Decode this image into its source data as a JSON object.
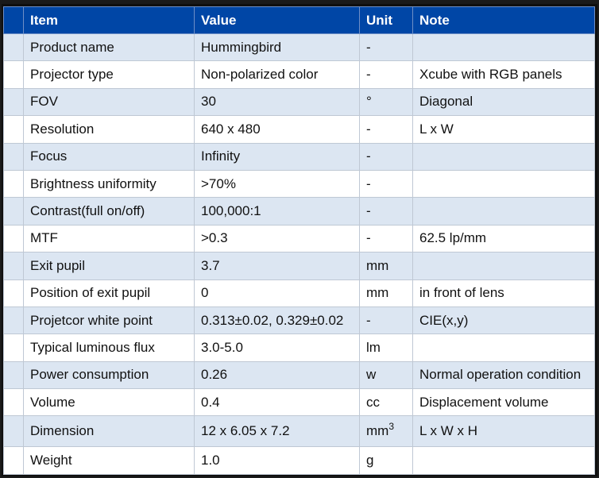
{
  "columns": [
    "Item",
    "Value",
    "Unit",
    "Note"
  ],
  "rows": [
    {
      "item": "Product name",
      "value": "Hummingbird",
      "unit": "-",
      "note": ""
    },
    {
      "item": "Projector type",
      "value": "Non-polarized color",
      "unit": "-",
      "note": "Xcube with RGB panels"
    },
    {
      "item": "FOV",
      "value": "30",
      "unit": "°",
      "note": "Diagonal"
    },
    {
      "item": "Resolution",
      "value": "640 x 480",
      "unit": "-",
      "note": "L x W"
    },
    {
      "item": "Focus",
      "value": "Infinity",
      "unit": "-",
      "note": ""
    },
    {
      "item": "Brightness uniformity",
      "value": ">70%",
      "unit": "-",
      "note": ""
    },
    {
      "item": "Contrast(full on/off)",
      "value": "100,000:1",
      "unit": "-",
      "note": ""
    },
    {
      "item": "MTF",
      "value": ">0.3",
      "unit": "-",
      "note": "62.5 lp/mm"
    },
    {
      "item": "Exit pupil",
      "value": "3.7",
      "unit": "mm",
      "note": ""
    },
    {
      "item": "Position of exit pupil",
      "value": "0",
      "unit": "mm",
      "note": "in front of lens"
    },
    {
      "item": "Projetcor white point",
      "value": "0.313±0.02, 0.329±0.02",
      "unit": "-",
      "note": "CIE(x,y)"
    },
    {
      "item": "Typical luminous flux",
      "value": "3.0-5.0",
      "unit": "lm",
      "note": ""
    },
    {
      "item": "Power consumption",
      "value": "0.26",
      "unit": "w",
      "note": "Normal operation condition"
    },
    {
      "item": "Volume",
      "value": "0.4",
      "unit": "cc",
      "note": "Displacement volume"
    },
    {
      "item": "Dimension",
      "value": "12 x 6.05 x 7.2",
      "unit": "mm",
      "unit_sup": "3",
      "note": "L x W x H"
    },
    {
      "item": "Weight",
      "value": "1.0",
      "unit": "g",
      "note": ""
    }
  ]
}
